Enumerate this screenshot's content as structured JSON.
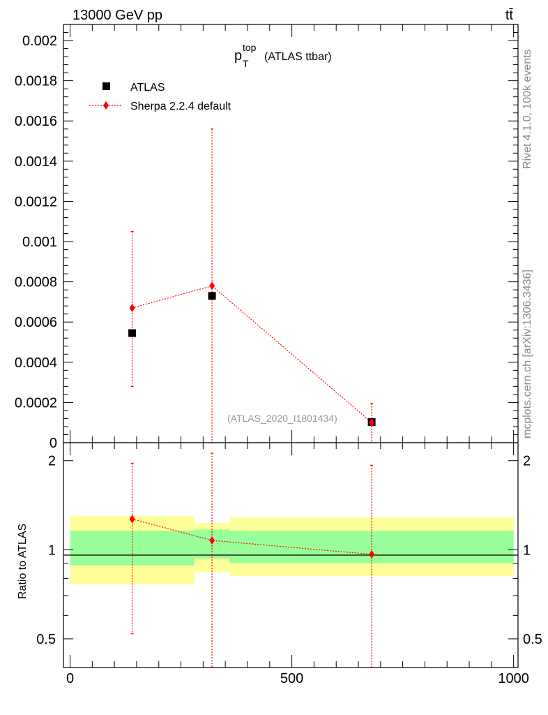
{
  "header": {
    "energy_label": "13000 GeV pp",
    "process_label": "tt̄"
  },
  "side_labels": {
    "rivet": "Rivet 4.1.0,  100k events",
    "mcplots": "mcplots.cern.ch [arXiv:1306.3436]"
  },
  "main_plot": {
    "title_main": "p",
    "title_sup": "top",
    "title_sub": "T",
    "title_rest": "(ATLAS ttbar)",
    "analysis_tag": "(ATLAS_2020_I1801434)"
  },
  "ratio_plot": {
    "ylabel": "Ratio to ATLAS"
  },
  "legend": [
    {
      "label": "ATLAS",
      "marker": "square",
      "color": "#000000"
    },
    {
      "label": "Sherpa 2.2.4 default",
      "marker": "diamond",
      "color": "#ff0000"
    }
  ],
  "colors": {
    "data": "#000000",
    "mc": "#ff0000",
    "band_inner": "#99ff99",
    "band_outer": "#ffff99"
  },
  "chart_data": [
    {
      "type": "scatter",
      "panel": "main",
      "xlim": [
        -15,
        1010
      ],
      "ylim": [
        0,
        0.00208
      ],
      "y_tick_labels": [
        "0",
        "0.0002",
        "0.0004",
        "0.0006",
        "0.0008",
        "0.001",
        "0.0012",
        "0.0014",
        "0.0016",
        "0.0018",
        "0.002"
      ],
      "y_tick_values": [
        0,
        0.0002,
        0.0004,
        0.0006,
        0.0008,
        0.001,
        0.0012,
        0.0014,
        0.0016,
        0.0018,
        0.002
      ],
      "series": [
        {
          "name": "ATLAS",
          "x": [
            140,
            320,
            680
          ],
          "y": [
            0.000545,
            0.00073,
            0.000103
          ]
        },
        {
          "name": "Sherpa 2.2.4 default",
          "x": [
            140,
            320,
            680
          ],
          "y": [
            0.00067,
            0.00078,
            0.0001
          ],
          "yerr_low": [
            0.00028,
            0.0,
            0.0
          ],
          "yerr_high": [
            0.00105,
            0.00156,
            0.000195
          ]
        }
      ]
    },
    {
      "type": "scatter",
      "panel": "ratio",
      "ylabel": "Ratio to ATLAS",
      "xlim": [
        -15,
        1010
      ],
      "ylim": [
        0.4,
        2.3
      ],
      "x_tick_labels": [
        "0",
        "500",
        "1000"
      ],
      "x_tick_values": [
        0,
        500,
        1000
      ],
      "y_tick_labels": [
        "0.5",
        "1",
        "2"
      ],
      "y_tick_values": [
        0.5,
        1,
        2
      ],
      "bands": [
        {
          "x0": 0,
          "x1": 280,
          "inner": [
            0.885,
            1.16
          ],
          "outer": [
            0.765,
            1.3
          ]
        },
        {
          "x0": 280,
          "x1": 360,
          "inner": [
            0.935,
            1.17
          ],
          "outer": [
            0.84,
            1.23
          ]
        },
        {
          "x0": 360,
          "x1": 1000,
          "inner": [
            0.9,
            1.16
          ],
          "outer": [
            0.815,
            1.285
          ]
        }
      ],
      "series": [
        {
          "name": "Sherpa 2.2.4 default",
          "x": [
            140,
            320,
            680
          ],
          "y": [
            1.27,
            1.075,
            0.965
          ],
          "yerr_low": [
            0.52,
            0.4,
            0.4
          ],
          "yerr_high": [
            1.96,
            2.12,
            1.93
          ]
        }
      ]
    }
  ]
}
